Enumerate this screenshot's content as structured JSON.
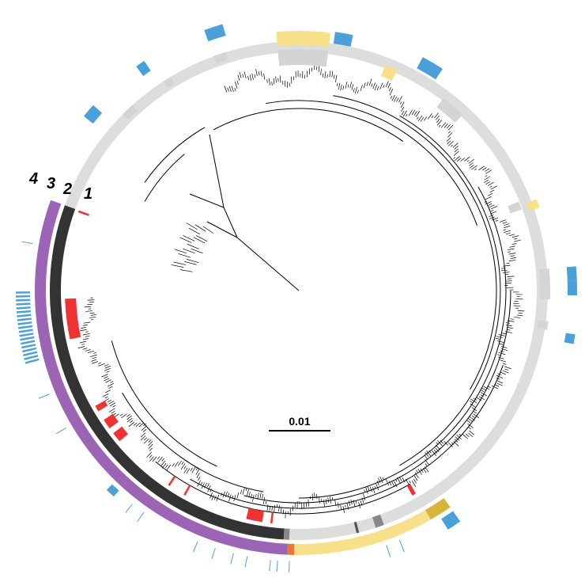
{
  "figure": {
    "ring_labels": [
      "1",
      "2",
      "3",
      "4"
    ],
    "scale_bar_label": "0.01"
  },
  "colors": {
    "tree_branch": "#000000",
    "ring1_red": "#f03232",
    "ring2_dark": "#333333",
    "ring2_light": "#dddddd",
    "ring3_purple": "#9b64b4",
    "ring3_yellow": "#f7e08a",
    "ring3_orange": "#e9753a",
    "ring3_gold": "#d6b53a",
    "ring4_blue": "#4aa0d8",
    "gray_block": "#d4d4d4"
  }
}
